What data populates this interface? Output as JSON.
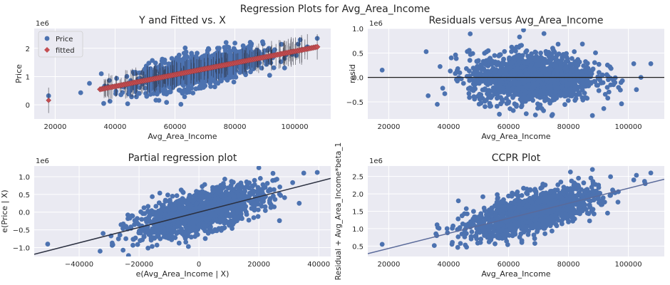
{
  "figure_title": "Regression Plots for Avg_Area_Income",
  "colors": {
    "background": "#ffffff",
    "axes_face": "#eaeaf2",
    "grid": "#ffffff",
    "points": "#4c72b0",
    "fitted": "#c44e52",
    "line": "#2b3040",
    "ccpr_line": "#5a6a9a",
    "text": "#262626"
  },
  "chart_data": [
    {
      "id": "yfitted",
      "type": "scatter",
      "title": "Y and Fitted vs. X",
      "xlabel": "Avg_Area_Income",
      "ylabel": "Price",
      "y_scale_label": "1e6",
      "xlim": [
        13000,
        112000
      ],
      "ylim": [
        -0.5,
        2.7
      ],
      "xticks": [
        20000,
        40000,
        60000,
        80000,
        100000
      ],
      "xtick_labels": [
        "20000",
        "40000",
        "60000",
        "80000",
        "100000"
      ],
      "yticks": [
        0,
        1,
        2
      ],
      "ytick_labels": [
        "0",
        "1",
        "2"
      ],
      "grid": true,
      "legend": {
        "placement": "top-left",
        "entries": [
          "Price",
          "fitted"
        ]
      },
      "series": [
        {
          "name": "Price",
          "marker": "circle",
          "color": "#4c72b0",
          "cloud": {
            "x_mean": 68000,
            "x_sd": 10500,
            "y_mean": 1.23,
            "y_sd": 0.35,
            "correlation": 0.64,
            "n": 1400
          },
          "points": [
            [
              17800,
              0.32
            ],
            [
              107500,
              2.35
            ],
            [
              104200,
              2.05
            ],
            [
              101800,
              2.3
            ],
            [
              35400,
              1.1
            ],
            [
              36200,
              0.05
            ],
            [
              100500,
              1.75
            ]
          ]
        },
        {
          "name": "fitted",
          "marker": "diamond",
          "color": "#c44e52",
          "line": {
            "x": [
              35000,
              107500
            ],
            "y": [
              0.55,
              2.05
            ]
          },
          "points": [
            [
              17800,
              0.16
            ]
          ]
        }
      ]
    },
    {
      "id": "resid",
      "type": "scatter",
      "title": "Residuals versus Avg_Area_Income",
      "xlabel": "Avg_Area_Income",
      "ylabel": "resid",
      "y_scale_label": "1e6",
      "xlim": [
        13000,
        112000
      ],
      "ylim": [
        -0.85,
        1.0
      ],
      "xticks": [
        20000,
        40000,
        60000,
        80000,
        100000
      ],
      "xtick_labels": [
        "20000",
        "40000",
        "60000",
        "80000",
        "100000"
      ],
      "yticks": [
        -0.5,
        0.0,
        0.5,
        1.0
      ],
      "ytick_labels": [
        "−0.5",
        "0.0",
        "0.5",
        "1.0"
      ],
      "grid": true,
      "hline": 0,
      "series": [
        {
          "name": "",
          "marker": "circle",
          "color": "#4c72b0",
          "cloud": {
            "x_mean": 68000,
            "x_sd": 10500,
            "y_mean": 0.0,
            "y_sd": 0.25,
            "correlation": 0,
            "n": 1400
          },
          "points": [
            [
              17800,
              0.15
            ],
            [
              107500,
              0.28
            ],
            [
              104200,
              0.0
            ],
            [
              101800,
              0.28
            ],
            [
              36200,
              -0.55
            ],
            [
              88000,
              -0.78
            ],
            [
              65000,
              0.97
            ]
          ]
        }
      ]
    },
    {
      "id": "partial",
      "type": "scatter",
      "title": "Partial regression plot",
      "xlabel": "e(Avg_Area_Income | X)",
      "ylabel": "e(Price | X)",
      "y_scale_label": "1e6",
      "xlim": [
        -55000,
        44000
      ],
      "ylim": [
        -1.25,
        1.3
      ],
      "xticks": [
        -40000,
        -20000,
        0,
        20000,
        40000
      ],
      "xtick_labels": [
        "−40000",
        "−20000",
        "0",
        "20000",
        "40000"
      ],
      "yticks": [
        -1.0,
        -0.5,
        0.0,
        0.5,
        1.0
      ],
      "ytick_labels": [
        "−1.0",
        "−0.5",
        "0.0",
        "0.5",
        "1.0"
      ],
      "grid": true,
      "fit_line": {
        "slope": 2.16e-05,
        "intercept": 0
      },
      "series": [
        {
          "name": "",
          "marker": "circle",
          "color": "#4c72b0",
          "cloud": {
            "x_mean": 0,
            "x_sd": 10500,
            "y_mean": 0.0,
            "y_sd": 0.35,
            "correlation": 0.64,
            "n": 1400
          },
          "points": [
            [
              -50500,
              -0.9
            ],
            [
              39500,
              1.12
            ],
            [
              35000,
              1.1
            ],
            [
              20000,
              1.25
            ],
            [
              -33000,
              -1.1
            ],
            [
              -32000,
              -0.6
            ]
          ]
        }
      ]
    },
    {
      "id": "ccpr",
      "type": "scatter",
      "title": "CCPR Plot",
      "xlabel": "Avg_Area_Income",
      "ylabel": "Residual + Avg_Area_Income*beta_1",
      "y_scale_label": "1e6",
      "xlim": [
        13000,
        112000
      ],
      "ylim": [
        0.2,
        2.8
      ],
      "xticks": [
        20000,
        40000,
        60000,
        80000,
        100000
      ],
      "xtick_labels": [
        "20000",
        "40000",
        "60000",
        "80000",
        "100000"
      ],
      "yticks": [
        0.5,
        1.0,
        1.5,
        2.0,
        2.5
      ],
      "ytick_labels": [
        "0.5",
        "1.0",
        "1.5",
        "2.0",
        "2.5"
      ],
      "grid": true,
      "fit_line": {
        "slope": 2.16e-05,
        "intercept": 0
      },
      "series": [
        {
          "name": "",
          "marker": "circle",
          "color": "#4c72b0",
          "cloud": {
            "x_mean": 68000,
            "x_sd": 10500,
            "y_mean": 1.47,
            "y_sd": 0.35,
            "correlation": 0.64,
            "n": 1400
          },
          "points": [
            [
              17800,
              0.55
            ],
            [
              107500,
              2.6
            ],
            [
              101800,
              2.4
            ],
            [
              36000,
              0.8
            ],
            [
              88000,
              2.7
            ]
          ]
        }
      ]
    }
  ]
}
